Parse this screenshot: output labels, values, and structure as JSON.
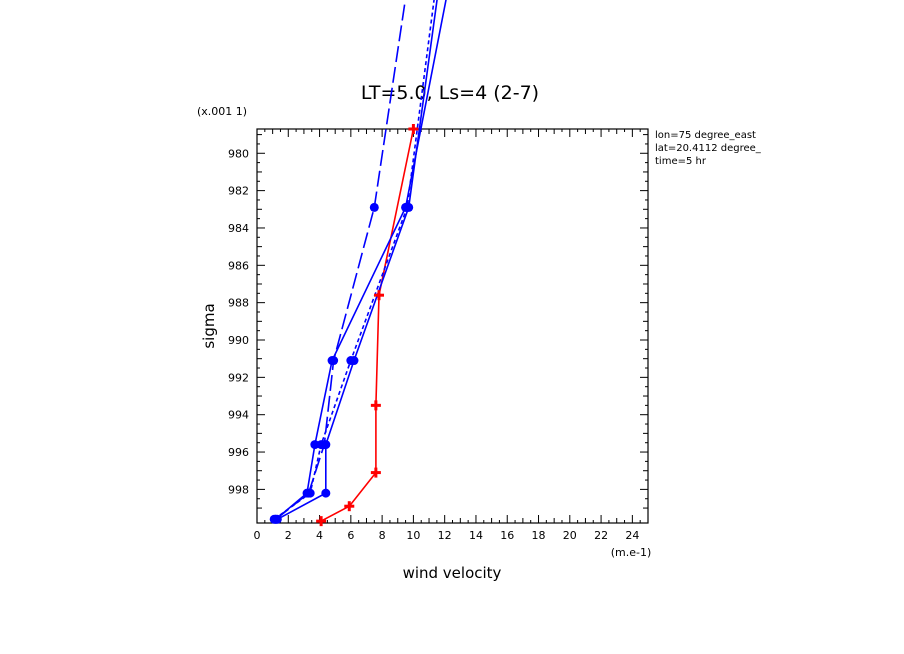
{
  "chart_data": {
    "type": "line",
    "title": "LT=5.0, Ls=4 (2-7)",
    "xlabel": "wind velocity",
    "ylabel": "sigma",
    "x_unit_label": "(m.e-1)",
    "y_unit_label": "(x.001 1)",
    "xlim": [
      0,
      25
    ],
    "ylim": [
      999.8,
      978.7
    ],
    "x_ticks": [
      "0",
      "2",
      "4",
      "6",
      "8",
      "10",
      "12",
      "14",
      "16",
      "18",
      "20",
      "22",
      "24"
    ],
    "y_ticks": [
      "980",
      "982",
      "984",
      "986",
      "988",
      "990",
      "992",
      "994",
      "996",
      "998"
    ],
    "info_lines": [
      "lon=75 degree_east",
      "lat=20.4112 degree_",
      "time=5 hr"
    ],
    "series": [
      {
        "color": "#ff0000",
        "dash": "solid",
        "marker": "plus",
        "points": [
          [
            4.1,
            999.7
          ],
          [
            5.9,
            998.9
          ],
          [
            7.6,
            997.1
          ],
          [
            7.6,
            993.5
          ],
          [
            7.8,
            987.6
          ],
          [
            10.0,
            978.7
          ]
        ]
      },
      {
        "color": "#0000ff",
        "dash": "solid",
        "marker": "dot",
        "points": [
          [
            1.2,
            999.6
          ],
          [
            3.2,
            998.2
          ],
          [
            3.7,
            995.6
          ],
          [
            4.8,
            991.1
          ],
          [
            9.5,
            982.9
          ],
          [
            12.5,
            970.0
          ]
        ]
      },
      {
        "color": "#0000ff",
        "dash": "solid",
        "marker": "dot",
        "points": [
          [
            1.3,
            999.6
          ],
          [
            4.4,
            998.2
          ],
          [
            4.4,
            995.6
          ],
          [
            6.2,
            991.1
          ],
          [
            9.7,
            982.9
          ],
          [
            11.8,
            970.0
          ]
        ]
      },
      {
        "color": "#0000ff",
        "dash": "longdash",
        "marker": "dot",
        "points": [
          [
            1.2,
            999.6
          ],
          [
            3.3,
            998.2
          ],
          [
            4.3,
            995.6
          ],
          [
            4.9,
            991.1
          ],
          [
            7.5,
            982.9
          ],
          [
            9.8,
            970.0
          ]
        ]
      },
      {
        "color": "#0000ff",
        "dash": "shortdash",
        "marker": "dot",
        "points": [
          [
            1.1,
            999.6
          ],
          [
            3.4,
            998.2
          ],
          [
            4.1,
            995.6
          ],
          [
            6.0,
            991.1
          ],
          [
            9.6,
            982.9
          ],
          [
            11.6,
            970.0
          ]
        ]
      }
    ]
  }
}
